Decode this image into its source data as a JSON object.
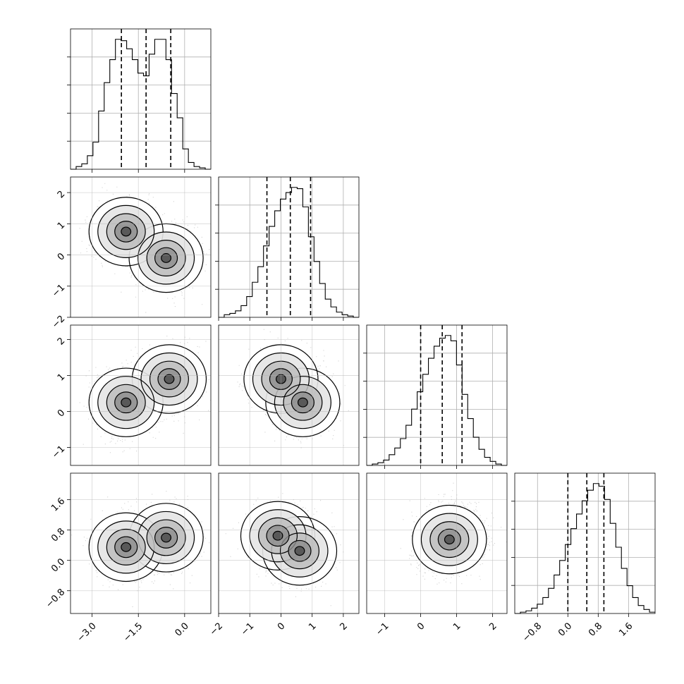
{
  "chart_data": {
    "type": "corner",
    "title": "",
    "parameters": [
      {
        "label": "",
        "range": [
          -3.7,
          0.85
        ],
        "ticks": [
          -3.0,
          -1.5,
          0.0
        ],
        "tick_labels": [
          "−3.0",
          "−1.5",
          "0.0"
        ],
        "quantiles": [
          -2.05,
          -1.25,
          -0.45
        ]
      },
      {
        "label": "",
        "range": [
          -2.0,
          2.5
        ],
        "ticks": [
          -2,
          -1,
          0,
          1,
          2
        ],
        "tick_labels": [
          "−2",
          "−1",
          "0",
          "1",
          "2"
        ],
        "quantiles": [
          -0.45,
          0.3,
          0.95
        ]
      },
      {
        "label": "",
        "range": [
          -1.5,
          2.4
        ],
        "ticks": [
          -1,
          0,
          1,
          2
        ],
        "tick_labels": [
          "−1",
          "0",
          "1",
          "2"
        ],
        "quantiles": [
          0.0,
          0.6,
          1.15
        ]
      },
      {
        "label": "",
        "range": [
          -1.4,
          2.3
        ],
        "ticks": [
          -0.8,
          0.0,
          0.8,
          1.6
        ],
        "tick_labels": [
          "−0.8",
          "0.0",
          "0.8",
          "1.6"
        ],
        "quantiles": [
          0.0,
          0.5,
          0.95
        ]
      }
    ],
    "histograms": [
      {
        "parameter": 0,
        "bins": [
          -3.7,
          0.85
        ],
        "counts": [
          0,
          2,
          4,
          10,
          20,
          43,
          64,
          81,
          96,
          95,
          89,
          81,
          71,
          69,
          85,
          96,
          96,
          81,
          56,
          38,
          15,
          5,
          2,
          1,
          0
        ]
      },
      {
        "parameter": 1,
        "bins": [
          -2.0,
          2.5
        ],
        "counts": [
          0,
          2,
          3,
          5,
          9,
          16,
          27,
          39,
          55,
          70,
          82,
          91,
          96,
          100,
          99,
          85,
          62,
          43,
          26,
          14,
          8,
          4,
          2,
          1,
          0
        ]
      },
      {
        "parameter": 2,
        "bins": [
          -1.5,
          2.4
        ],
        "counts": [
          0,
          1,
          2,
          4,
          8,
          13,
          20,
          30,
          42,
          55,
          68,
          80,
          89,
          95,
          97,
          93,
          75,
          53,
          35,
          21,
          12,
          6,
          3,
          1,
          0
        ]
      },
      {
        "parameter": 3,
        "bins": [
          -1.4,
          2.3
        ],
        "counts": [
          0,
          1,
          2,
          4,
          7,
          12,
          19,
          29,
          40,
          52,
          64,
          75,
          85,
          93,
          98,
          96,
          86,
          68,
          50,
          34,
          21,
          12,
          6,
          3,
          1
        ]
      }
    ],
    "pair_modes": [
      {
        "x": 0,
        "y": 1,
        "modes": [
          {
            "mx": -1.9,
            "my": 0.75
          },
          {
            "mx": -0.6,
            "my": -0.1
          }
        ]
      },
      {
        "x": 0,
        "y": 2,
        "modes": [
          {
            "mx": -1.9,
            "my": 0.25
          },
          {
            "mx": -0.5,
            "my": 0.9
          }
        ]
      },
      {
        "x": 1,
        "y": 2,
        "modes": [
          {
            "mx": 0.0,
            "my": 0.9
          },
          {
            "mx": 0.7,
            "my": 0.25
          }
        ]
      },
      {
        "x": 0,
        "y": 3,
        "modes": [
          {
            "mx": -1.9,
            "my": 0.35
          },
          {
            "mx": -0.6,
            "my": 0.6
          }
        ]
      },
      {
        "x": 1,
        "y": 3,
        "modes": [
          {
            "mx": -0.1,
            "my": 0.65
          },
          {
            "mx": 0.6,
            "my": 0.25
          }
        ]
      },
      {
        "x": 2,
        "y": 3,
        "modes": [
          {
            "mx": 0.8,
            "my": 0.55
          }
        ]
      }
    ],
    "grid": true
  }
}
